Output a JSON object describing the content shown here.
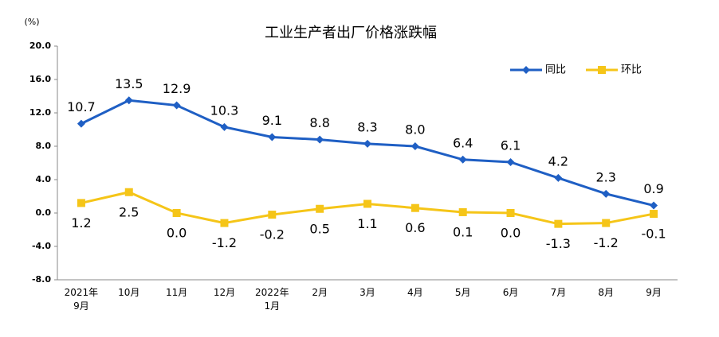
{
  "chart_data": {
    "type": "line",
    "title": "工业生产者出厂价格涨跌幅",
    "y_label": "(%)",
    "categories": [
      "2021年\n9月",
      "10月",
      "11月",
      "12月",
      "2022年\n1月",
      "2月",
      "3月",
      "4月",
      "5月",
      "6月",
      "7月",
      "8月",
      "9月"
    ],
    "series": [
      {
        "name": "同比",
        "color": "#1f5fc4",
        "marker": "diamond",
        "values": [
          10.7,
          13.5,
          12.9,
          10.3,
          9.1,
          8.8,
          8.3,
          8.0,
          6.4,
          6.1,
          4.2,
          2.3,
          0.9
        ],
        "value_labels": [
          "10.7",
          "13.5",
          "12.9",
          "10.3",
          "9.1",
          "8.8",
          "8.3",
          "8.0",
          "6.4",
          "6.1",
          "4.2",
          "2.3",
          "0.9"
        ]
      },
      {
        "name": "环比",
        "color": "#f5c518",
        "marker": "square",
        "values": [
          1.2,
          2.5,
          0.0,
          -1.2,
          -0.2,
          0.5,
          1.1,
          0.6,
          0.1,
          0.0,
          -1.3,
          -1.2,
          -0.1
        ],
        "value_labels": [
          "1.2",
          "2.5",
          "0.0",
          "-1.2",
          "-0.2",
          "0.5",
          "1.1",
          "0.6",
          "0.1",
          "0.0",
          "-1.3",
          "-1.2",
          "-0.1"
        ]
      }
    ],
    "ylim": [
      -8,
      20
    ],
    "yticks": [
      {
        "value": -8,
        "label": "-8.0"
      },
      {
        "value": -4,
        "label": "-4.0"
      },
      {
        "value": 0,
        "label": "0.0"
      },
      {
        "value": 4,
        "label": "4.0"
      },
      {
        "value": 8,
        "label": "8.0"
      },
      {
        "value": 12,
        "label": "12.0"
      },
      {
        "value": 16,
        "label": "16.0"
      },
      {
        "value": 20,
        "label": "20.0"
      }
    ],
    "grid": false,
    "legend": "upper right"
  }
}
